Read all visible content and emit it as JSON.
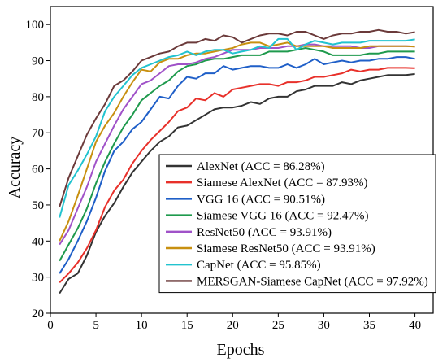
{
  "chart_data": {
    "type": "line",
    "title": "",
    "xlabel": "Epochs",
    "ylabel": "Accuracy",
    "xlim": [
      0,
      42
    ],
    "ylim": [
      20,
      105
    ],
    "xticks": [
      0,
      5,
      10,
      15,
      20,
      25,
      30,
      35,
      40
    ],
    "yticks": [
      20,
      30,
      40,
      50,
      60,
      70,
      80,
      90,
      100
    ],
    "grid": false,
    "legend_position": "lower-right",
    "x": [
      1,
      2,
      3,
      4,
      5,
      6,
      7,
      8,
      9,
      10,
      11,
      12,
      13,
      14,
      15,
      16,
      17,
      18,
      19,
      20,
      21,
      22,
      23,
      24,
      25,
      26,
      27,
      28,
      29,
      30,
      31,
      32,
      33,
      34,
      35,
      36,
      37,
      38,
      39,
      40
    ],
    "series": [
      {
        "name": "AlexNet (ACC = 86.28%)",
        "color": "#333333",
        "values": [
          25.5,
          29.5,
          31,
          36,
          42.5,
          47,
          50.5,
          55,
          59,
          62,
          65,
          67.5,
          69,
          71.5,
          72,
          73.5,
          75,
          76.5,
          77,
          77,
          77.5,
          78.5,
          78,
          79.5,
          80,
          80,
          81.5,
          82,
          83,
          83,
          83,
          84,
          83.5,
          84.5,
          85,
          85.5,
          86,
          86,
          86,
          86.3
        ]
      },
      {
        "name": "Siamese AlexNet (ACC = 87.93%)",
        "color": "#e8302a",
        "values": [
          28.5,
          31,
          34,
          38,
          43,
          49.5,
          54,
          57,
          61.5,
          65,
          68,
          70.5,
          73,
          76,
          77,
          79.5,
          79,
          81,
          80,
          82,
          82.5,
          83,
          83.5,
          83.5,
          83,
          84,
          84,
          84.5,
          85.5,
          85.5,
          86,
          86.5,
          87.5,
          87,
          87.5,
          87.5,
          88,
          88,
          88,
          87.9
        ]
      },
      {
        "name": "VGG 16 (ACC = 90.51%)",
        "color": "#1f5fc8",
        "values": [
          31,
          35,
          40,
          45.5,
          52,
          59.5,
          65,
          67.5,
          71,
          73,
          76.5,
          80,
          79.5,
          83,
          85.5,
          85,
          86.5,
          86.5,
          88.5,
          87.5,
          88,
          88.5,
          88.5,
          88,
          88,
          89,
          88,
          89,
          90.5,
          89,
          89.5,
          90,
          89.5,
          90,
          90,
          90.5,
          90.5,
          91,
          91,
          90.5
        ]
      },
      {
        "name": "Siamese VGG 16 (ACC = 92.47%)",
        "color": "#1f9a4d",
        "values": [
          34.5,
          39,
          43.5,
          49,
          56,
          62,
          67,
          71.5,
          75,
          79,
          81,
          83,
          84.5,
          87,
          88.5,
          89,
          90,
          90.5,
          90.5,
          91,
          91.5,
          91.5,
          91.5,
          92.5,
          92.5,
          92.5,
          93,
          93.5,
          93,
          92.5,
          91.5,
          91.5,
          91.5,
          91.5,
          92,
          92,
          92.5,
          92.5,
          92.5,
          92.5
        ]
      },
      {
        "name": "ResNet50 (ACC = 93.91%)",
        "color": "#a052c8",
        "values": [
          39,
          43,
          49,
          55,
          62,
          67,
          72,
          76.5,
          80,
          83.5,
          84.5,
          86.5,
          88.5,
          89,
          89,
          89.5,
          90.5,
          91,
          92,
          93,
          93,
          93,
          93.5,
          93.5,
          93.5,
          94,
          94,
          94.5,
          94.5,
          94,
          94,
          94,
          94,
          93.5,
          93.5,
          94,
          94,
          94,
          94,
          93.9
        ]
      },
      {
        "name": "Siamese ResNet50 (ACC = 93.91%)",
        "color": "#c89010",
        "values": [
          40,
          45.5,
          52.5,
          60,
          67.5,
          72,
          75.5,
          80,
          84,
          87.5,
          87,
          89.5,
          90.5,
          90.5,
          91.5,
          92,
          92,
          92.5,
          93,
          93.5,
          94.5,
          95,
          95,
          94,
          94.5,
          95,
          94,
          94,
          94,
          94,
          93.5,
          93.5,
          93.5,
          93.5,
          94,
          94,
          94,
          94,
          94,
          93.9
        ]
      },
      {
        "name": "CapNet (ACC = 95.85%)",
        "color": "#22c3cf",
        "values": [
          46.5,
          55.5,
          59.5,
          64,
          69,
          76,
          80,
          83,
          86,
          88,
          89,
          90,
          91,
          91.5,
          92.5,
          91.5,
          92.5,
          93,
          93,
          92,
          92.5,
          93,
          94,
          93.5,
          96,
          96,
          93,
          94.5,
          95.5,
          95,
          94.5,
          95,
          95,
          95,
          95.5,
          95.5,
          95.5,
          95.5,
          95.5,
          95.9
        ]
      },
      {
        "name": "MERSGAN-Siamese CapNet (ACC = 97.92%)",
        "color": "#6b3a3a",
        "values": [
          49.5,
          57.5,
          63.5,
          69.5,
          74,
          78,
          83,
          84.5,
          87,
          90,
          91,
          92,
          92.5,
          94,
          95,
          95,
          96,
          95.5,
          97,
          96.5,
          95,
          96,
          97,
          97.5,
          97.5,
          97,
          98,
          98,
          97,
          96,
          97,
          97.5,
          97.5,
          98,
          98,
          98.5,
          98,
          98,
          97.5,
          97.9
        ]
      }
    ]
  }
}
